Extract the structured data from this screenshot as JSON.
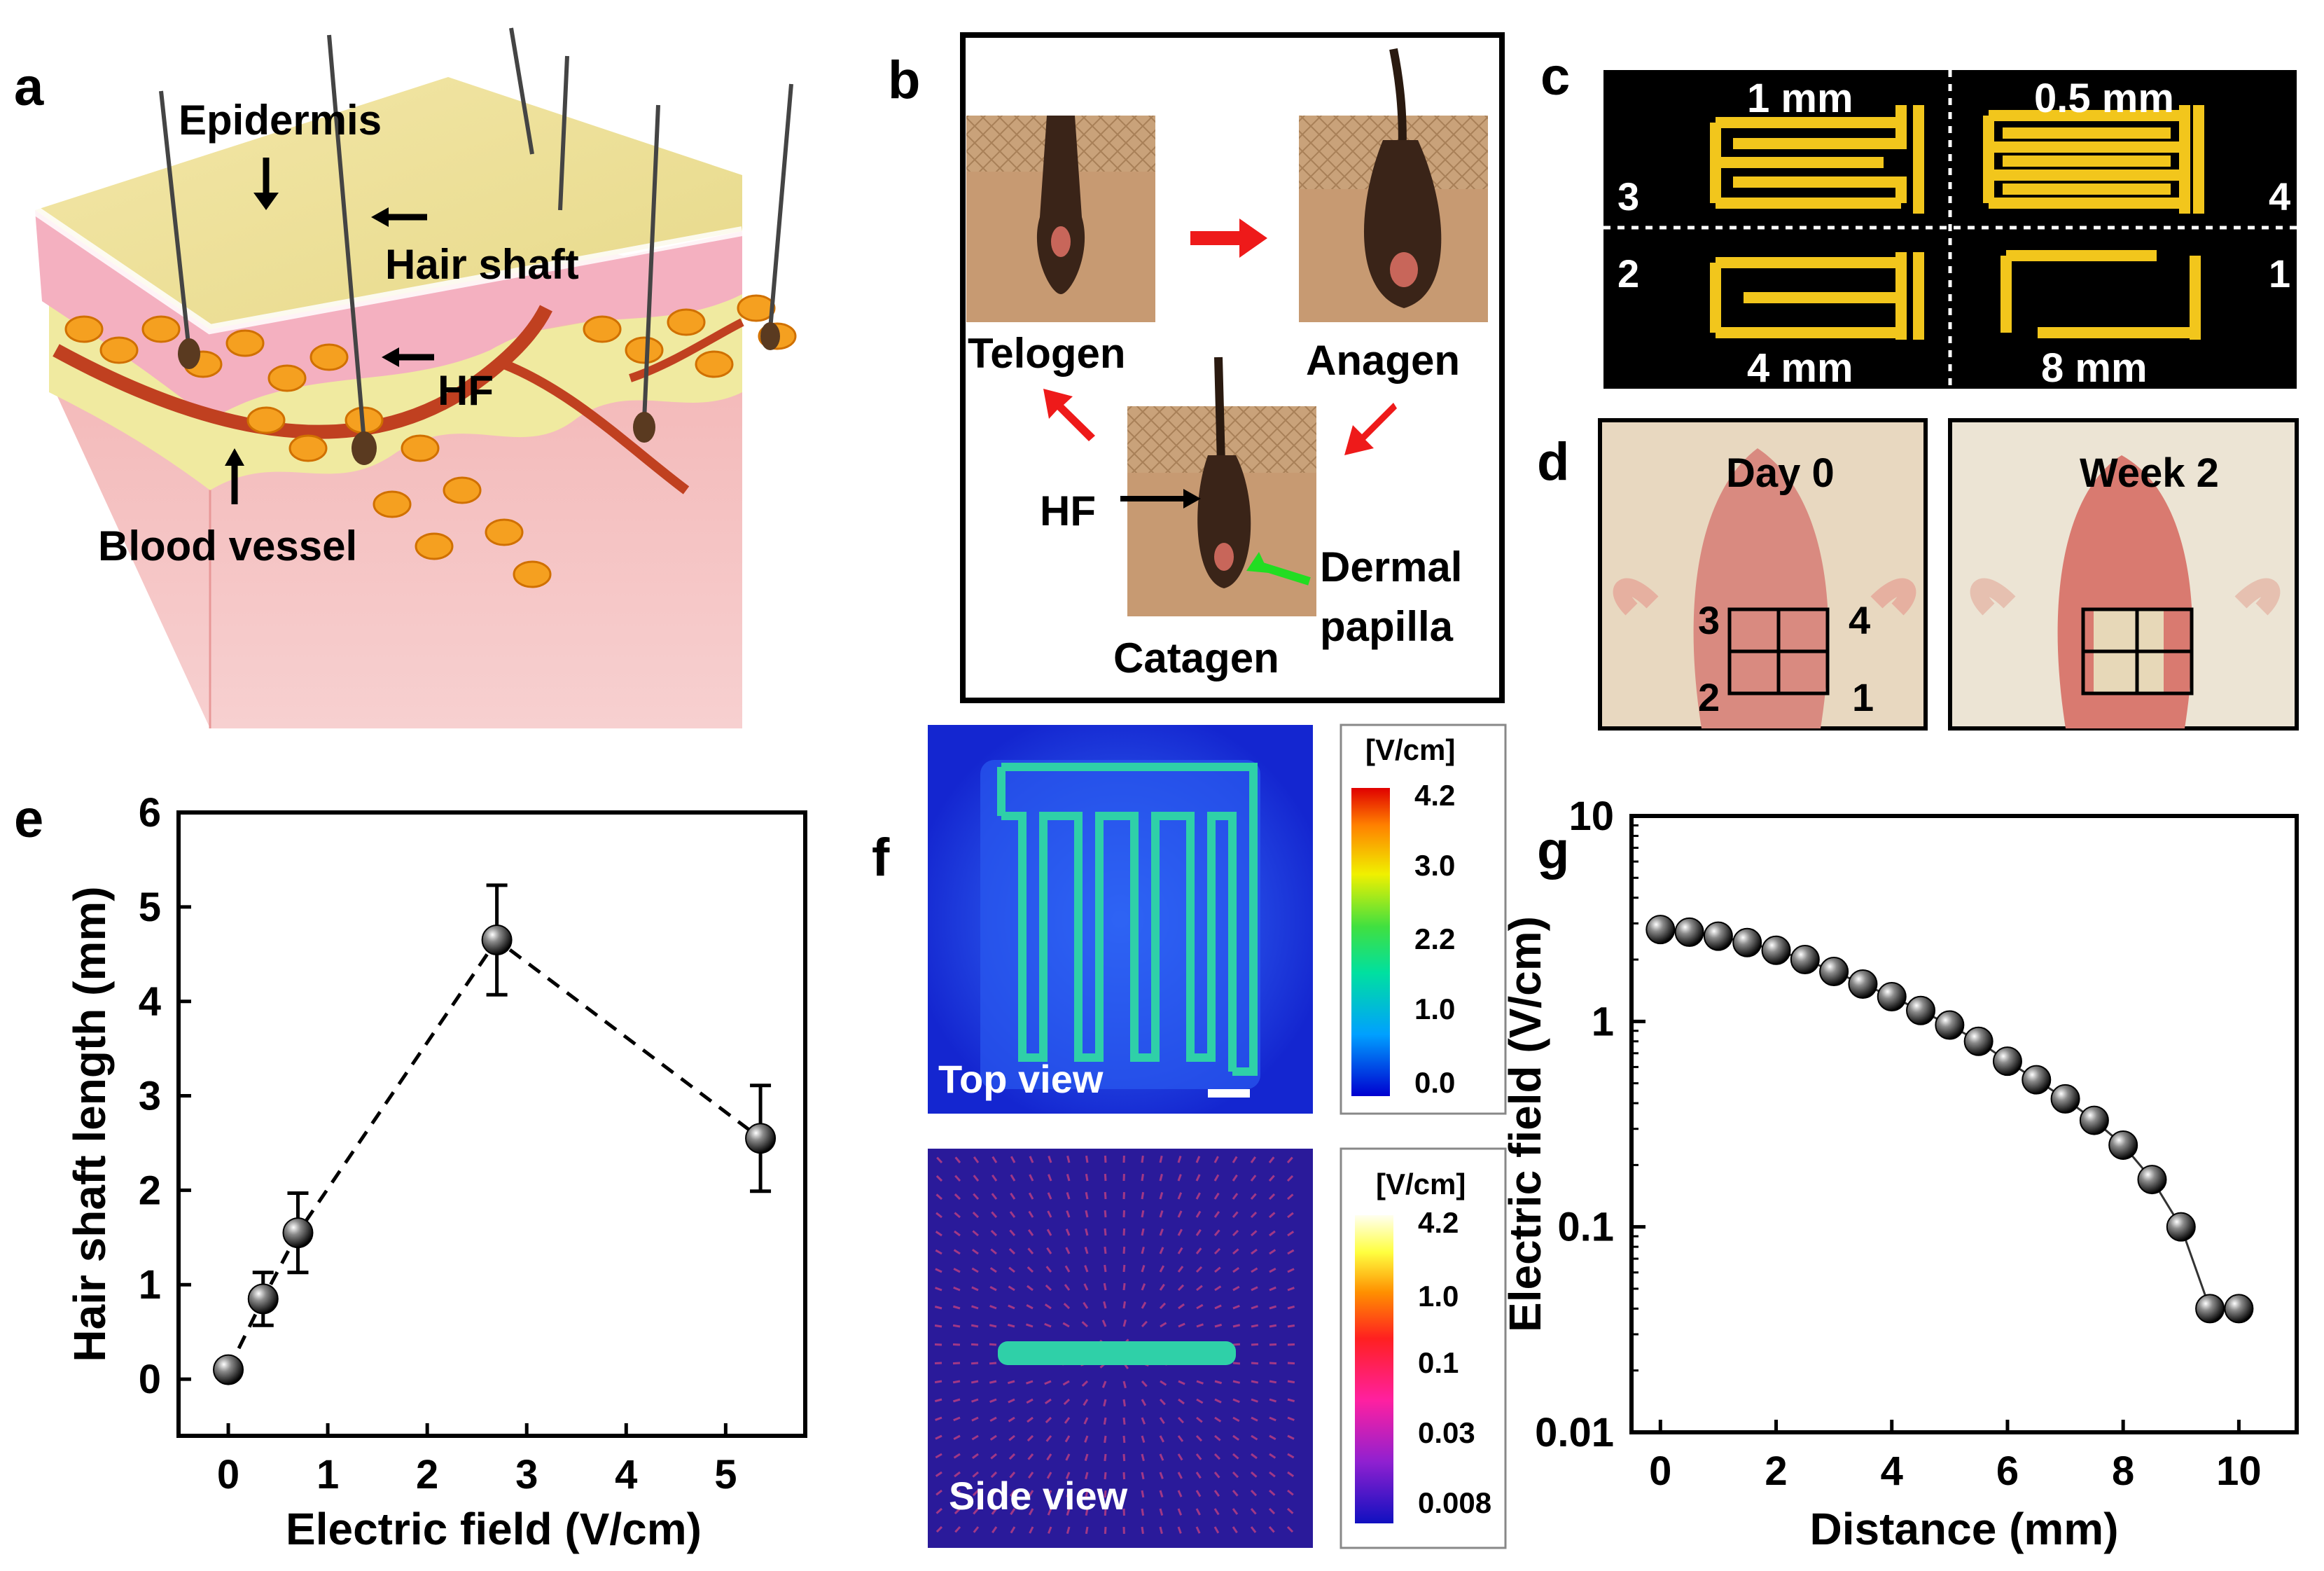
{
  "panel_letters": {
    "a": "a",
    "b": "b",
    "c": "c",
    "d": "d",
    "e": "e",
    "f": "f",
    "g": "g"
  },
  "panel_a": {
    "labels": {
      "epidermis": "Epidermis",
      "hair_shaft": "Hair shaft",
      "hf": "HF",
      "blood_vessel": "Blood vessel"
    }
  },
  "panel_b": {
    "labels": {
      "telogen": "Telogen",
      "anagen": "Anagen",
      "catagen": "Catagen",
      "hf": "HF",
      "dermal": "Dermal",
      "papilla": "papilla"
    }
  },
  "panel_c": {
    "sizes": {
      "top_left": "1 mm",
      "top_right": "0.5 mm",
      "bottom_left": "4 mm",
      "bottom_right": "8 mm"
    },
    "quadrants": {
      "q3": "3",
      "q4": "4",
      "q2": "2",
      "q1": "1"
    }
  },
  "panel_d": {
    "left_title": "Day 0",
    "right_title": "Week 2",
    "grid_labels": {
      "q3": "3",
      "q4": "4",
      "q2": "2",
      "q1": "1"
    }
  },
  "panel_f": {
    "top_view_label": "Top view",
    "side_view_label": "Side view",
    "colorbar_top": {
      "unit": "[V/cm]",
      "ticks": [
        "4.2",
        "3.0",
        "2.2",
        "1.0",
        "0.0"
      ]
    },
    "colorbar_side": {
      "unit": "[V/cm]",
      "ticks": [
        "4.2",
        "1.0",
        "0.1",
        "0.03",
        "0.008"
      ]
    },
    "colors": {
      "background": "#1a2fd6",
      "electrode": "#2fd0a8",
      "side_bg": "#2a1a9a"
    }
  },
  "chart_data": [
    {
      "id": "e",
      "type": "scatter",
      "xlabel": "Electric field (V/cm)",
      "ylabel": "Hair shaft length (mm)",
      "xlim": [
        -0.5,
        5.8
      ],
      "ylim": [
        -0.6,
        6
      ],
      "xticks": [
        "0",
        "1",
        "2",
        "3",
        "4",
        "5"
      ],
      "yticks": [
        "0",
        "1",
        "2",
        "3",
        "4",
        "5",
        "6"
      ],
      "x": [
        0,
        0.35,
        0.7,
        2.7,
        5.35
      ],
      "y": [
        0.1,
        0.85,
        1.55,
        4.65,
        2.55
      ],
      "yerr": [
        0.05,
        0.28,
        0.42,
        0.58,
        0.56
      ],
      "line": "dashed"
    },
    {
      "id": "g",
      "type": "scatter",
      "xlabel": "Distance (mm)",
      "ylabel": "Electric field (V/cm)",
      "xlim": [
        -0.5,
        11
      ],
      "ylim": [
        0.01,
        10
      ],
      "yscale": "log",
      "xticks": [
        "0",
        "2",
        "4",
        "6",
        "8",
        "10"
      ],
      "yticks": [
        "0.01",
        "0.1",
        "1",
        "10"
      ],
      "x": [
        0,
        0.5,
        1,
        1.5,
        2,
        2.5,
        3,
        3.5,
        4,
        4.5,
        5,
        5.5,
        6,
        6.5,
        7,
        7.5,
        8,
        8.5,
        9,
        9.5,
        10
      ],
      "y": [
        2.8,
        2.72,
        2.6,
        2.42,
        2.22,
        2.0,
        1.75,
        1.52,
        1.32,
        1.13,
        0.96,
        0.8,
        0.64,
        0.52,
        0.42,
        0.33,
        0.25,
        0.17,
        0.1,
        0.04,
        0.04
      ],
      "line": "solid"
    }
  ]
}
